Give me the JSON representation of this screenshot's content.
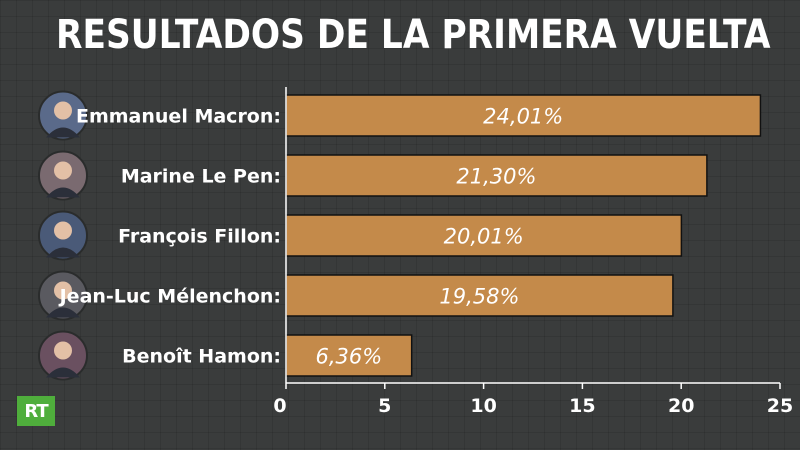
{
  "header": {
    "title": "RESULTADOS DE LA PRIMERA VUELTA"
  },
  "brand": {
    "logo_text": "RT"
  },
  "colors": {
    "background": "#3a3c3c",
    "bar": "#c48a4a",
    "bar_border": "#111111",
    "axis": "#ffffff",
    "logo": "#4fae3c"
  },
  "chart_data": {
    "type": "bar",
    "orientation": "horizontal",
    "title": "RESULTADOS DE LA PRIMERA VUELTA",
    "categories": [
      "Emmanuel Macron:",
      "Marine Le Pen:",
      "François Fillon:",
      "Jean-Luc Mélenchon:",
      "Benoît Hamon:"
    ],
    "values": [
      24.01,
      21.3,
      20.01,
      19.58,
      6.36
    ],
    "value_labels": [
      "24,01%",
      "21,30%",
      "20,01%",
      "19,58%",
      "6,36%"
    ],
    "xlim": [
      0,
      25
    ],
    "xticks": [
      0,
      5,
      10,
      15,
      20,
      25
    ],
    "avatars": [
      "person-photo-macron",
      "person-photo-le-pen",
      "person-photo-fillon",
      "person-photo-melenchon",
      "person-photo-hamon"
    ],
    "grid": false,
    "legend": "none"
  }
}
